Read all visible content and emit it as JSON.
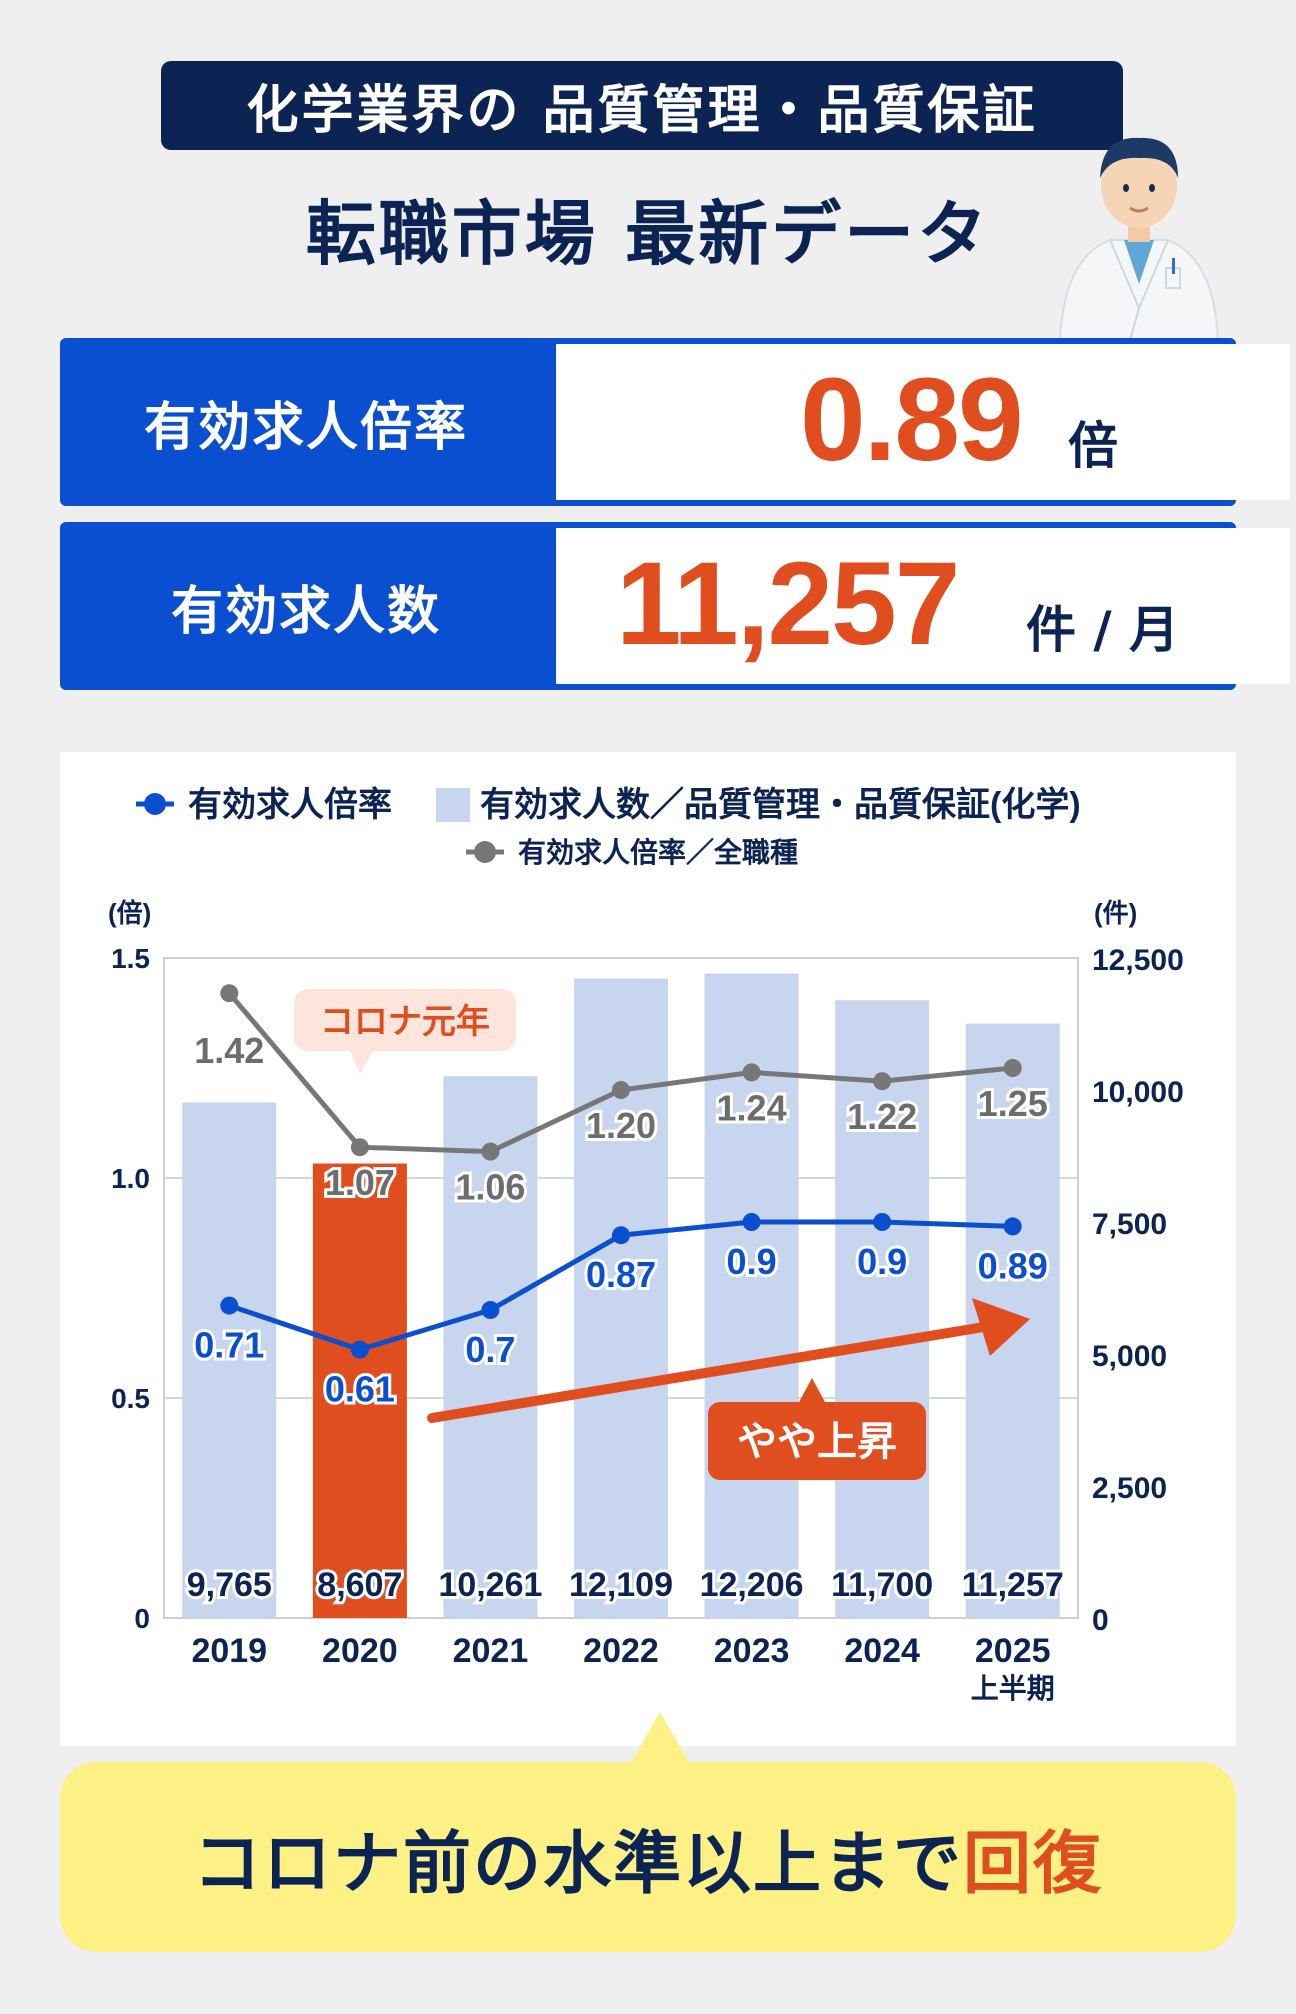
{
  "header": {
    "badge": "化学業界の 品質管理・品質保証",
    "subtitle": "転職市場 最新データ"
  },
  "stats": {
    "ratio_label": "有効求人倍率",
    "ratio_value": "0.89",
    "ratio_unit": "倍",
    "count_label": "有効求人数",
    "count_value": "11,257",
    "count_unit": "件 / 月"
  },
  "colors": {
    "navy": "#0b2454",
    "blue": "#0a4fcf",
    "orange": "#e04e1f",
    "bar": "#c7d5ee",
    "gray_line": "#777777",
    "callout": "#fdf084"
  },
  "chart_data": {
    "type": "bar",
    "categories": [
      "2019",
      "2020",
      "2021",
      "2022",
      "2023",
      "2024",
      "2025"
    ],
    "category_sublabels": [
      "",
      "",
      "",
      "",
      "",
      "",
      "上半期"
    ],
    "series": [
      {
        "name": "有効求人数／品質管理・品質保証(化学)",
        "type": "bar",
        "axis": "right",
        "values": [
          9765,
          8607,
          10261,
          12109,
          12206,
          11700,
          11257
        ],
        "labels": [
          "9,765",
          "8,607",
          "10,261",
          "12,109",
          "12,206",
          "11,700",
          "11,257"
        ],
        "highlight_index": 1
      },
      {
        "name": "有効求人倍率",
        "type": "line",
        "axis": "left",
        "values": [
          0.71,
          0.61,
          0.7,
          0.87,
          0.9,
          0.9,
          0.89
        ],
        "labels": [
          "0.71",
          "0.61",
          "0.7",
          "0.87",
          "0.9",
          "0.9",
          "0.89"
        ]
      },
      {
        "name": "有効求人倍率／全職種",
        "type": "line",
        "axis": "left",
        "values": [
          1.42,
          1.07,
          1.06,
          1.2,
          1.24,
          1.22,
          1.25
        ],
        "labels": [
          "1.42",
          "1.07",
          "1.06",
          "1.20",
          "1.24",
          "1.22",
          "1.25"
        ]
      }
    ],
    "left_axis": {
      "unit": "(倍)",
      "ylim": [
        0,
        1.5
      ],
      "ticks": [
        "0",
        "0.5",
        "1.0",
        "1.5"
      ],
      "tick_values": [
        0,
        0.5,
        1.0,
        1.5
      ]
    },
    "right_axis": {
      "unit": "(件)",
      "ylim": [
        0,
        12500
      ],
      "ticks": [
        "0",
        "2,500",
        "5,000",
        "7,500",
        "10,000",
        "12,500"
      ],
      "tick_values": [
        0,
        2500,
        5000,
        7500,
        10000,
        12500
      ]
    },
    "annotations": {
      "covid": "コロナ元年",
      "trend": "やや上昇"
    },
    "legend_placement": "top",
    "grid": true
  },
  "callout": {
    "before": "コロナ前の水準以上まで",
    "highlight": "回復"
  }
}
